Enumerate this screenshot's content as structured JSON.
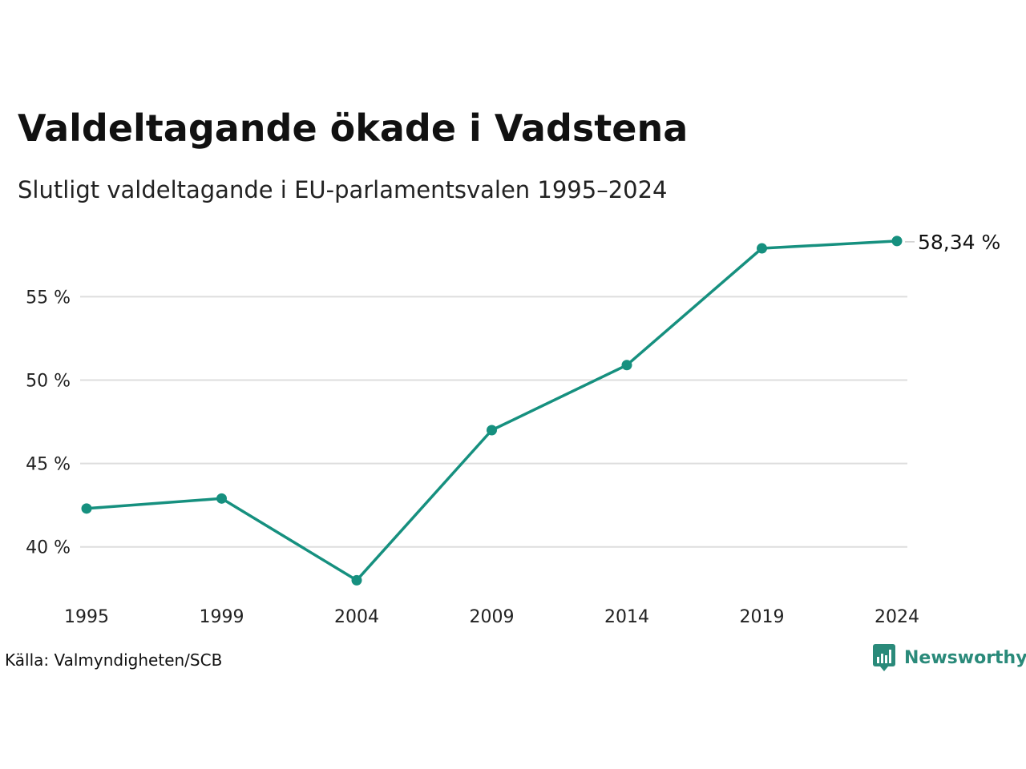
{
  "header": {
    "title": "Valdeltagande ökade i Vadstena",
    "subtitle": "Slutligt valdeltagande i EU-parlamentsvalen 1995–2024"
  },
  "footer": {
    "source": "Källa: Valmyndigheten/SCB",
    "brand": "Newsworthy",
    "brand_icon": "bar-chart-speech-bubble-icon"
  },
  "colors": {
    "line": "#16907f",
    "grid": "#dddddd",
    "brand": "#2a8a7a"
  },
  "chart_data": {
    "type": "line",
    "title": "Valdeltagande ökade i Vadstena",
    "subtitle": "Slutligt valdeltagande i EU-parlamentsvalen 1995–2024",
    "xlabel": "",
    "ylabel": "",
    "categories": [
      "1995",
      "1999",
      "2004",
      "2009",
      "2014",
      "2019",
      "2024"
    ],
    "series": [
      {
        "values": [
          42.3,
          42.9,
          38.0,
          47.0,
          50.9,
          57.9,
          58.34
        ]
      }
    ],
    "y_ticks": [
      40,
      45,
      50,
      55
    ],
    "y_tick_labels": [
      "40 %",
      "45 %",
      "50 %",
      "55 %"
    ],
    "ylim": [
      37.7,
      58.8
    ],
    "end_label": "58,34 %",
    "grid": true,
    "legend": "none"
  }
}
